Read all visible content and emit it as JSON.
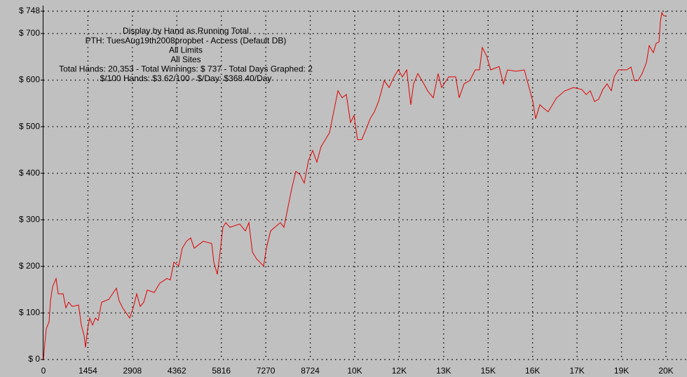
{
  "chart_data": {
    "type": "line",
    "annotations": [
      "Display by Hand as Running Total",
      "PTH: TuesAug19th2008propbet - Access (Default DB)",
      "All Limits",
      "All Sites",
      "Total Hands: 20,353 - Total Winnings: $ 737 - Total Days Graphed: 2",
      "$/100 Hands: $3.62/100 - $/Day: $368.40/Day"
    ],
    "xlim": [
      0,
      20356
    ],
    "xticks": [
      0,
      1454,
      2908,
      4362,
      5816,
      7270,
      8724,
      {
        "value": 10178,
        "label": "10K"
      },
      {
        "value": 11632,
        "label": "12K"
      },
      {
        "value": 13086,
        "label": "13K"
      },
      {
        "value": 14540,
        "label": "15K"
      },
      {
        "value": 15994,
        "label": "16K"
      },
      {
        "value": 17448,
        "label": "17K"
      },
      {
        "value": 18902,
        "label": "19K"
      },
      {
        "value": 20356,
        "label": "20K"
      }
    ],
    "ylim": [
      0,
      748
    ],
    "yticks": [
      {
        "value": 0,
        "label": "$ 0"
      },
      {
        "value": 100,
        "label": "$ 100"
      },
      {
        "value": 200,
        "label": "$ 200"
      },
      {
        "value": 300,
        "label": "$ 300"
      },
      {
        "value": 400,
        "label": "$ 400"
      },
      {
        "value": 500,
        "label": "$ 500"
      },
      {
        "value": 600,
        "label": "$ 600"
      },
      {
        "value": 700,
        "label": "$ 700"
      },
      {
        "value": 748,
        "label": "$ 748"
      }
    ],
    "grid": true,
    "x": [
      0,
      46,
      92,
      183,
      229,
      298,
      413,
      481,
      642,
      734,
      825,
      940,
      1146,
      1238,
      1330,
      1376,
      1444,
      1513,
      1605,
      1696,
      1788,
      1903,
      2132,
      2384,
      2476,
      2591,
      2820,
      2934,
      3049,
      3164,
      3278,
      3393,
      3622,
      3806,
      4035,
      4149,
      4264,
      4425,
      4539,
      4677,
      4814,
      4929,
      5066,
      5227,
      5502,
      5571,
      5685,
      5777,
      5869,
      5961,
      6098,
      6419,
      6602,
      6717,
      6832,
      6969,
      7198,
      7290,
      7428,
      7565,
      7749,
      7863,
      7978,
      8115,
      8253,
      8391,
      8528,
      8666,
      8803,
      8941,
      9078,
      9216,
      9353,
      9491,
      9629,
      9766,
      9904,
      10041,
      10156,
      10270,
      10408,
      10546,
      10683,
      10821,
      10958,
      11142,
      11302,
      11463,
      11601,
      11738,
      11876,
      12013,
      12104,
      12242,
      12380,
      12563,
      12746,
      12907,
      13021,
      13251,
      13480,
      13594,
      13755,
      13938,
      14122,
      14259,
      14351,
      14489,
      14626,
      14901,
      15039,
      15176,
      15452,
      15726,
      15818,
      15910,
      16002,
      16094,
      16231,
      16369,
      16506,
      16644,
      16781,
      17056,
      17331,
      17606,
      17744,
      17881,
      18019,
      18156,
      18294,
      18431,
      18569,
      18661,
      18799,
      19073,
      19211,
      19325,
      19440,
      19577,
      19715,
      19807,
      19944,
      20036,
      20128,
      20174,
      20220,
      20266,
      20353
    ],
    "series": [
      {
        "color": "#e00000",
        "values": [
          0,
          36,
          66,
          81,
          126,
          156,
          174,
          141,
          141,
          111,
          123,
          114,
          117,
          74,
          51,
          26,
          66,
          89,
          74,
          89,
          84,
          123,
          129,
          153,
          126,
          111,
          89,
          111,
          141,
          114,
          123,
          149,
          144,
          164,
          174,
          171,
          209,
          201,
          239,
          254,
          261,
          239,
          246,
          254,
          249,
          209,
          183,
          231,
          284,
          294,
          284,
          291,
          276,
          294,
          231,
          216,
          201,
          239,
          276,
          284,
          294,
          284,
          321,
          366,
          404,
          397,
          379,
          427,
          449,
          424,
          457,
          472,
          487,
          532,
          577,
          562,
          569,
          509,
          524,
          472,
          472,
          494,
          517,
          532,
          554,
          599,
          584,
          607,
          622,
          607,
          622,
          547,
          592,
          614,
          599,
          577,
          562,
          614,
          584,
          607,
          607,
          562,
          592,
          599,
          622,
          622,
          670,
          652,
          622,
          629,
          592,
          622,
          619,
          622,
          599,
          577,
          554,
          517,
          547,
          539,
          532,
          547,
          562,
          577,
          584,
          580,
          569,
          577,
          554,
          559,
          580,
          592,
          577,
          607,
          622,
          622,
          628,
          599,
          599,
          614,
          637,
          674,
          659,
          679,
          682,
          727,
          745,
          739,
          737
        ]
      }
    ]
  }
}
